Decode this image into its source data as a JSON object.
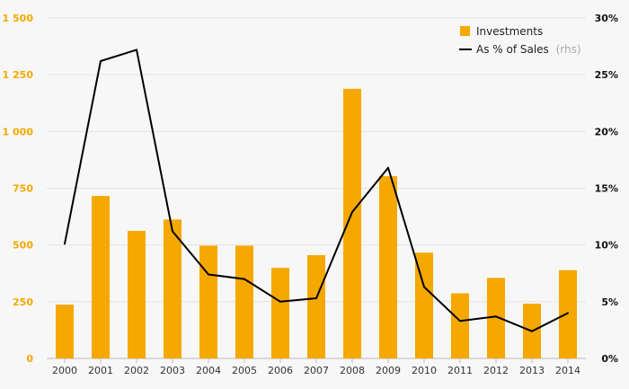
{
  "chart_data": {
    "type": "bar",
    "categories": [
      "2000",
      "2001",
      "2002",
      "2003",
      "2004",
      "2005",
      "2006",
      "2007",
      "2008",
      "2009",
      "2010",
      "2011",
      "2012",
      "2013",
      "2014"
    ],
    "series": [
      {
        "name": "Investments",
        "type": "bar",
        "axis": "left",
        "color": "#f5a800",
        "values": [
          237,
          716,
          562,
          612,
          497,
          497,
          399,
          455,
          1188,
          803,
          466,
          287,
          355,
          241,
          389
        ]
      },
      {
        "name": "As % of Sales",
        "type": "line",
        "axis": "right",
        "color": "#000000",
        "values": [
          10.1,
          26.2,
          27.2,
          11.2,
          7.4,
          7.0,
          5.0,
          5.3,
          12.9,
          16.8,
          6.3,
          3.3,
          3.7,
          2.4,
          4.0
        ]
      }
    ],
    "left_axis": {
      "ylim": [
        0,
        1500
      ],
      "ticks": [
        0,
        250,
        500,
        750,
        1000,
        1250,
        1500
      ],
      "tick_labels": [
        "0",
        "250",
        "500",
        "750",
        "1 000",
        "1 250",
        "1 500"
      ]
    },
    "right_axis": {
      "ylim": [
        0,
        30
      ],
      "ticks": [
        0,
        5,
        10,
        15,
        20,
        25,
        30
      ],
      "tick_labels": [
        "0%",
        "5%",
        "10%",
        "15%",
        "20%",
        "25%",
        "30%"
      ]
    },
    "legend": {
      "position": "top-right",
      "items": [
        {
          "label": "Investments",
          "note": "",
          "symbol": "square",
          "color": "#f5a800"
        },
        {
          "label": "As % of Sales",
          "note": "(rhs)",
          "symbol": "line",
          "color": "#000000"
        }
      ]
    },
    "grid": true,
    "title": "",
    "xlabel": "",
    "ylabel": ""
  }
}
